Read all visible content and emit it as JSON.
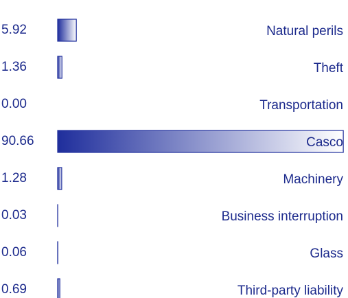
{
  "chart_data": {
    "type": "bar",
    "categories": [
      "Natural perils",
      "Theft",
      "Transportation",
      "Casco",
      "Machinery",
      "Business interruption",
      "Glass",
      "Third-party liability"
    ],
    "values": [
      5.92,
      1.36,
      0,
      90.66,
      1.28,
      0.03,
      0.06,
      0.69
    ],
    "value_labels": [
      "5.92",
      "1.36",
      "0.00",
      "90.66",
      "1.28",
      "0.03",
      "0.06",
      "0.69"
    ],
    "color": "#1f2e9c",
    "xlim": [
      0,
      100
    ]
  }
}
